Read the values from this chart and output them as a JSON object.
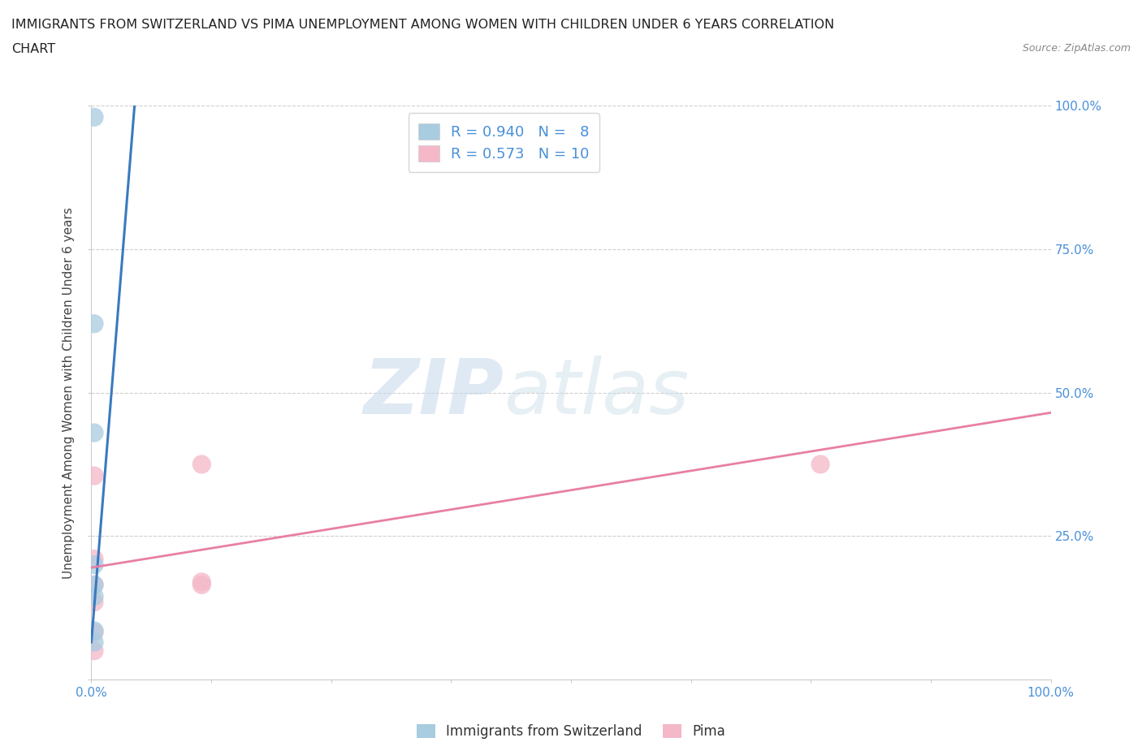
{
  "title_line1": "IMMIGRANTS FROM SWITZERLAND VS PIMA UNEMPLOYMENT AMONG WOMEN WITH CHILDREN UNDER 6 YEARS CORRELATION",
  "title_line2": "CHART",
  "source": "Source: ZipAtlas.com",
  "ylabel": "Unemployment Among Women with Children Under 6 years",
  "xlim": [
    0.0,
    1.0
  ],
  "ylim": [
    0.0,
    1.0
  ],
  "blue_scatter_x": [
    0.003,
    0.003,
    0.003,
    0.003,
    0.003,
    0.003,
    0.003,
    0.003
  ],
  "blue_scatter_y": [
    0.98,
    0.62,
    0.43,
    0.2,
    0.165,
    0.145,
    0.085,
    0.065
  ],
  "pink_scatter_x": [
    0.003,
    0.003,
    0.115,
    0.115,
    0.115,
    0.003,
    0.76,
    0.003,
    0.003,
    0.003
  ],
  "pink_scatter_y": [
    0.355,
    0.21,
    0.375,
    0.17,
    0.165,
    0.165,
    0.375,
    0.135,
    0.082,
    0.05
  ],
  "blue_line_x": [
    0.0,
    0.045
  ],
  "blue_line_y": [
    0.065,
    1.0
  ],
  "pink_line_x": [
    0.0,
    1.0
  ],
  "pink_line_y": [
    0.195,
    0.465
  ],
  "blue_color": "#a8cce0",
  "pink_color": "#f4b8c8",
  "blue_line_color": "#3a7abf",
  "pink_line_color": "#e87fa5",
  "R_blue": "0.940",
  "N_blue": "8",
  "R_pink": "0.573",
  "N_pink": "10",
  "legend_label_blue": "Immigrants from Switzerland",
  "legend_label_pink": "Pima",
  "watermark_zip": "ZIP",
  "watermark_atlas": "atlas",
  "background_color": "#ffffff",
  "grid_color": "#d0d0d0",
  "title_color": "#222222",
  "tick_color": "#4a90d9",
  "label_color": "#444444",
  "label_fontsize": 11,
  "title_fontsize": 11.5
}
